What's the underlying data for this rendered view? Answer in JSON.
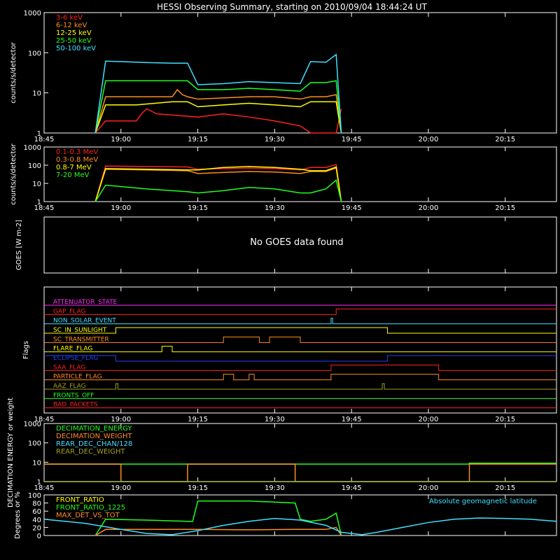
{
  "title": "HESSI Observing Summary, starting on 2010/09/04 18:44:24 UT",
  "time_axis": {
    "ticks": [
      "18:45",
      "19:00",
      "19:15",
      "19:30",
      "19:45",
      "20:00",
      "20:15"
    ],
    "range_minutes": [
      0,
      100
    ],
    "note_start": "18:45"
  },
  "colors": {
    "red": "#ff2020",
    "orange": "#ff8c20",
    "yellow": "#ffff00",
    "green": "#20ff20",
    "cyan": "#40e0ff",
    "magenta": "#ff30ff",
    "blue": "#2040ff",
    "olive": "#a0a020",
    "white": "#ffffff"
  },
  "chart_data": [
    {
      "id": "count-rates",
      "type": "line",
      "ylabel": "counts/s/detector",
      "yscale": "log",
      "ylim": [
        1,
        1000
      ],
      "yticks": [
        "1",
        "10",
        "100",
        "1000"
      ],
      "grid": false,
      "legend_position": "top-left",
      "series": [
        {
          "name": "3-6 keV",
          "color": "red",
          "x": [
            10,
            12,
            18,
            19,
            20,
            22,
            30,
            35,
            40,
            45,
            50,
            52,
            55,
            57,
            58
          ],
          "y": [
            1,
            2,
            2,
            3,
            4,
            3,
            2.5,
            3,
            2.5,
            2,
            1.5,
            1,
            1,
            1,
            4
          ]
        },
        {
          "name": "6-12 keV",
          "color": "orange",
          "x": [
            10,
            12,
            18,
            25,
            26,
            27,
            28,
            30,
            35,
            40,
            45,
            50,
            52,
            55,
            57,
            58
          ],
          "y": [
            1,
            8,
            8,
            8,
            12,
            9,
            8,
            7,
            7.5,
            8,
            8,
            7,
            8,
            8,
            9,
            1
          ]
        },
        {
          "name": "12-25 keV",
          "color": "yellow",
          "x": [
            10,
            12,
            18,
            25,
            28,
            30,
            35,
            40,
            45,
            50,
            52,
            55,
            57,
            58
          ],
          "y": [
            1,
            5,
            5,
            6,
            6,
            4.5,
            5,
            5.5,
            5,
            4.5,
            6,
            6,
            6,
            1
          ]
        },
        {
          "name": "25-50 keV",
          "color": "green",
          "x": [
            10,
            12,
            18,
            28,
            30,
            35,
            40,
            45,
            50,
            52,
            55,
            57,
            58
          ],
          "y": [
            1,
            20,
            20,
            20,
            12,
            12,
            13,
            12,
            11,
            18,
            18,
            20,
            1
          ]
        },
        {
          "name": "50-100 keV",
          "color": "cyan",
          "x": [
            10,
            12,
            15,
            20,
            25,
            28,
            30,
            35,
            40,
            45,
            50,
            52,
            55,
            57,
            58
          ],
          "y": [
            1,
            62,
            60,
            57,
            55,
            55,
            16,
            17,
            19,
            18,
            17,
            60,
            58,
            90,
            1
          ]
        }
      ]
    },
    {
      "id": "high-energy-rates",
      "type": "line",
      "ylabel": "counts/s/detector",
      "yscale": "log",
      "ylim": [
        1,
        1000
      ],
      "yticks": [
        "1",
        "10",
        "100",
        "1000"
      ],
      "grid": false,
      "legend_position": "top-left",
      "series": [
        {
          "name": "0.1-0.3 MeV",
          "color": "red",
          "x": [
            10,
            12,
            20,
            28,
            30,
            35,
            40,
            45,
            50,
            52,
            55,
            57,
            58
          ],
          "y": [
            1,
            90,
            85,
            80,
            60,
            65,
            70,
            65,
            55,
            75,
            75,
            110,
            1
          ]
        },
        {
          "name": "0.3-0.8 MeV",
          "color": "orange",
          "x": [
            10,
            12,
            20,
            28,
            30,
            35,
            40,
            45,
            50,
            52,
            55,
            57,
            58
          ],
          "y": [
            1,
            60,
            55,
            50,
            35,
            40,
            45,
            42,
            35,
            45,
            45,
            70,
            1
          ]
        },
        {
          "name": "0.8-7 MeV",
          "color": "yellow",
          "x": [
            10,
            12,
            20,
            28,
            30,
            35,
            40,
            45,
            50,
            52,
            55,
            57,
            58
          ],
          "y": [
            1,
            65,
            60,
            55,
            55,
            75,
            85,
            75,
            60,
            50,
            50,
            80,
            1
          ]
        },
        {
          "name": "7-20 MeV",
          "color": "green",
          "x": [
            10,
            12,
            20,
            28,
            30,
            35,
            40,
            45,
            50,
            52,
            55,
            57,
            58
          ],
          "y": [
            1,
            8,
            5,
            3.5,
            3,
            4,
            6,
            5,
            3,
            3,
            5,
            15,
            1
          ]
        }
      ]
    },
    {
      "id": "goes",
      "type": "line",
      "ylabel": "GOES [W m-2]",
      "message": "No GOES data found",
      "series": []
    },
    {
      "id": "flags",
      "type": "line",
      "ylabel": "Flags",
      "series": [
        {
          "name": "ATTENUATOR_STATE",
          "color": "magenta",
          "x": [
            0,
            100
          ],
          "y": [
            0,
            0
          ]
        },
        {
          "name": "GAP_FLAG",
          "color": "red",
          "x": [
            0,
            57,
            57,
            100
          ],
          "y": [
            0,
            0,
            1,
            1
          ]
        },
        {
          "name": "NON_SOLAR_EVENT",
          "color": "cyan",
          "x": [
            0,
            56,
            56,
            56.3,
            56.3,
            100
          ],
          "y": [
            0,
            0,
            1,
            1,
            0,
            0
          ]
        },
        {
          "name": "SC_IN_SUNLIGHT",
          "color": "yellow",
          "x": [
            0,
            14,
            14,
            67,
            67,
            100
          ],
          "y": [
            0,
            0,
            1,
            1,
            0,
            0
          ]
        },
        {
          "name": "SC_TRANSMITTER",
          "color": "orange",
          "x": [
            0,
            35,
            35,
            42,
            42,
            44,
            44,
            50,
            50,
            100
          ],
          "y": [
            0,
            0,
            1,
            1,
            0,
            0,
            1,
            1,
            0,
            0
          ]
        },
        {
          "name": "FLARE_FLAG",
          "color": "yellow",
          "x": [
            0,
            23,
            23,
            25,
            25,
            100
          ],
          "y": [
            0,
            0,
            1,
            1,
            0,
            0
          ]
        },
        {
          "name": "ECLIPSE_FLAG",
          "color": "blue",
          "x": [
            0,
            14,
            14,
            67,
            67,
            100
          ],
          "y": [
            1,
            1,
            0,
            0,
            1,
            1
          ]
        },
        {
          "name": "SAA_FLAG",
          "color": "red",
          "x": [
            0,
            56,
            56,
            77,
            77,
            100
          ],
          "y": [
            0,
            0,
            1,
            1,
            0,
            0
          ]
        },
        {
          "name": "PARTICLE_FLAG",
          "color": "orange",
          "x": [
            0,
            35,
            35,
            37,
            37,
            40,
            40,
            41,
            41,
            56,
            56,
            77,
            77,
            100
          ],
          "y": [
            0,
            0,
            1,
            1,
            0,
            0,
            1,
            1,
            0,
            0,
            1,
            1,
            0,
            0
          ]
        },
        {
          "name": "AAZ_FLAG",
          "color": "olive",
          "x": [
            0,
            14,
            14,
            14.4,
            14.4,
            66,
            66,
            66.4,
            66.4,
            100
          ],
          "y": [
            0,
            0,
            1,
            1,
            0,
            0,
            1,
            1,
            0,
            0
          ]
        },
        {
          "name": "FRONTS_OFF",
          "color": "green",
          "x": [
            0,
            100
          ],
          "y": [
            0,
            0
          ]
        },
        {
          "name": "BAD_PACKETS",
          "color": "red",
          "x": [
            0,
            100
          ],
          "y": [
            0,
            0
          ]
        }
      ]
    },
    {
      "id": "decimation",
      "type": "line",
      "ylabel": "DECIMATION ENERGY or weight",
      "yscale": "log",
      "ylim": [
        1,
        1000
      ],
      "yticks": [
        "1",
        "10",
        "100",
        "1000"
      ],
      "legend_position": "top-left",
      "series": [
        {
          "name": "DECIMATION_ENERGY",
          "color": "green",
          "x": [
            0,
            15,
            15,
            28,
            28,
            49,
            49,
            83,
            83,
            100
          ],
          "y": [
            8,
            8,
            8,
            8,
            8,
            8,
            8,
            8,
            9,
            9
          ]
        },
        {
          "name": "DECIMATION_WEIGHT",
          "color": "orange",
          "x": [
            0,
            15,
            15,
            28,
            28,
            49,
            49,
            83,
            83,
            100
          ],
          "y": [
            8,
            8,
            1,
            1,
            8,
            8,
            1,
            1,
            8,
            8
          ]
        },
        {
          "name": "REAR_DEC_CHAN/128",
          "color": "cyan",
          "x": [
            0,
            100
          ],
          "y": [
            1,
            1
          ]
        },
        {
          "name": "REAR_DEC_WEIGHT",
          "color": "olive",
          "x": [
            0,
            100
          ],
          "y": [
            1,
            1
          ]
        }
      ]
    },
    {
      "id": "ratios",
      "type": "line",
      "ylabel": "Degrees or %",
      "ylim": [
        0,
        100
      ],
      "yticks": [
        "0",
        "20",
        "40",
        "60",
        "80",
        "100"
      ],
      "legend_position": "top-left",
      "series": [
        {
          "name": "FRONT_RATIO",
          "color": "yellow",
          "x": [],
          "y": []
        },
        {
          "name": "FRONT_RATIO_1225",
          "color": "green",
          "x": [
            10,
            12,
            20,
            28,
            29,
            30,
            40,
            49,
            50,
            52,
            55,
            57,
            58
          ],
          "y": [
            0,
            40,
            38,
            35,
            35,
            85,
            85,
            80,
            40,
            35,
            40,
            55,
            0
          ]
        },
        {
          "name": "MAX_DET_VS_TOT",
          "color": "orange",
          "x": [
            10,
            12,
            20,
            28,
            30,
            40,
            49,
            52,
            55,
            57,
            58
          ],
          "y": [
            0,
            15,
            15,
            15,
            15,
            14,
            15,
            15,
            15,
            20,
            0
          ]
        },
        {
          "name": "Absolute geomagnetic latitude",
          "color": "cyan",
          "x": [
            0,
            8,
            15,
            20,
            25,
            30,
            35,
            40,
            45,
            50,
            55,
            58,
            62,
            65,
            70,
            75,
            80,
            85,
            90,
            95,
            100
          ],
          "y": [
            40,
            30,
            15,
            5,
            2,
            12,
            25,
            35,
            42,
            38,
            25,
            8,
            2,
            8,
            20,
            32,
            40,
            43,
            42,
            40,
            35
          ]
        }
      ]
    }
  ]
}
